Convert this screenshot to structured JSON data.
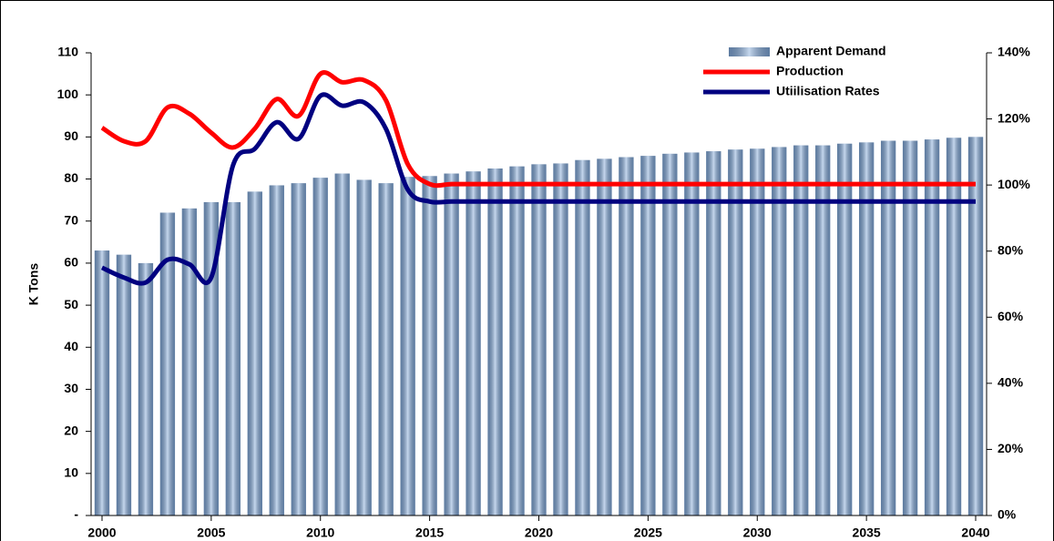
{
  "chart_data": {
    "type": "bar",
    "ylabel": "K Tons",
    "categories": [
      "2000",
      null,
      null,
      null,
      null,
      "2005",
      null,
      null,
      null,
      null,
      "2010",
      null,
      null,
      null,
      null,
      "2015",
      null,
      null,
      null,
      null,
      "2020",
      null,
      null,
      null,
      null,
      "2025",
      null,
      null,
      null,
      null,
      "2030",
      null,
      null,
      null,
      null,
      "2035",
      null,
      null,
      null,
      null,
      "2040"
    ],
    "series": [
      {
        "name": "Apparent Demand",
        "type": "bar",
        "color": "#7ea6d8",
        "values": [
          63,
          62,
          60,
          72,
          73,
          74.5,
          74.5,
          77,
          78.5,
          79,
          80.3,
          81.3,
          79.8,
          79,
          80.5,
          80.7,
          81.3,
          81.8,
          82.5,
          83,
          83.5,
          83.7,
          84.5,
          84.8,
          85.2,
          85.5,
          86,
          86.3,
          86.6,
          87,
          87.2,
          87.6,
          88,
          88,
          88.4,
          88.7,
          89.1,
          89.1,
          89.4,
          89.8,
          90
        ]
      },
      {
        "name": "Production",
        "type": "line",
        "color": "#ff0000",
        "values": [
          92.2,
          89,
          89,
          97,
          95.5,
          91,
          87.5,
          92,
          99,
          95,
          105,
          103,
          103.5,
          98.7,
          83.5,
          78.8,
          78.8,
          78.8,
          78.8,
          78.8,
          78.8,
          78.8,
          78.8,
          78.8,
          78.8,
          78.8,
          78.8,
          78.8,
          78.8,
          78.8,
          78.8,
          78.8,
          78.8,
          78.8,
          78.8,
          78.8,
          78.8,
          78.8,
          78.8,
          78.8,
          78.8
        ]
      },
      {
        "name": "Utiilisation Rates",
        "type": "line",
        "color": "#000080",
        "axis": "y2",
        "values": [
          75,
          72,
          70.5,
          77.4,
          76,
          72,
          106,
          111,
          119,
          114,
          127,
          124,
          125,
          117,
          98.6,
          95,
          95,
          95,
          95,
          95,
          95,
          95,
          95,
          95,
          95,
          95,
          95,
          95,
          95,
          95,
          95,
          95,
          95,
          95,
          95,
          95,
          95,
          95,
          95,
          95,
          95
        ]
      }
    ],
    "ylim": [
      0,
      110
    ],
    "yticks": [
      {
        "value": 0,
        "label": "-"
      },
      10,
      20,
      30,
      40,
      50,
      60,
      70,
      80,
      90,
      100,
      110
    ],
    "y2lim": [
      0,
      140
    ],
    "y2ticks": [
      {
        "value": 0,
        "label": "0%"
      },
      {
        "value": 20,
        "label": "20%"
      },
      {
        "value": 40,
        "label": "40%"
      },
      {
        "value": 60,
        "label": "60%"
      },
      {
        "value": 80,
        "label": "80%"
      },
      {
        "value": 100,
        "label": "100%"
      },
      {
        "value": 120,
        "label": "120%"
      },
      {
        "value": 140,
        "label": "140%"
      }
    ],
    "legend": "top-right"
  }
}
